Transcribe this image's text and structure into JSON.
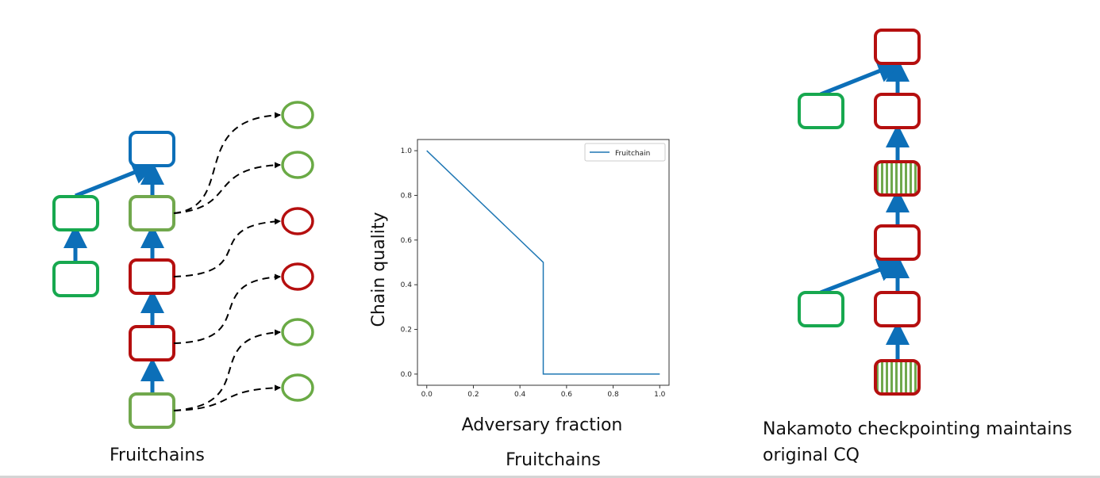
{
  "colors": {
    "arrow": "#0c6fb8",
    "block_green": "#17a84f",
    "block_lightgreen": "#71a84d",
    "block_red": "#b50f0f",
    "block_blue": "#0c6fb8",
    "fruit_green": "#6aaa45",
    "fruit_red": "#b50f0f",
    "line": "#1f77b4"
  },
  "left": {
    "caption": "Fruitchains"
  },
  "middle": {
    "caption": "Fruitchains"
  },
  "right": {
    "caption_line1": "Nakamoto checkpointing maintains",
    "caption_line2": "original CQ"
  },
  "chart_data": {
    "type": "line",
    "title": "",
    "xlabel": "Adversary fraction",
    "ylabel": "Chain quality",
    "xlim": [
      -0.04,
      1.04
    ],
    "ylim": [
      -0.05,
      1.05
    ],
    "xticks": [
      "0.0",
      "0.2",
      "0.4",
      "0.6",
      "0.8",
      "1.0"
    ],
    "yticks": [
      "0.0",
      "0.2",
      "0.4",
      "0.6",
      "0.8",
      "1.0"
    ],
    "legend_position": "top-right",
    "grid": false,
    "series": [
      {
        "name": "Fruitchain",
        "x": [
          0.0,
          0.5,
          0.5,
          1.0
        ],
        "y": [
          1.0,
          0.5,
          0.0,
          0.0
        ]
      }
    ]
  }
}
